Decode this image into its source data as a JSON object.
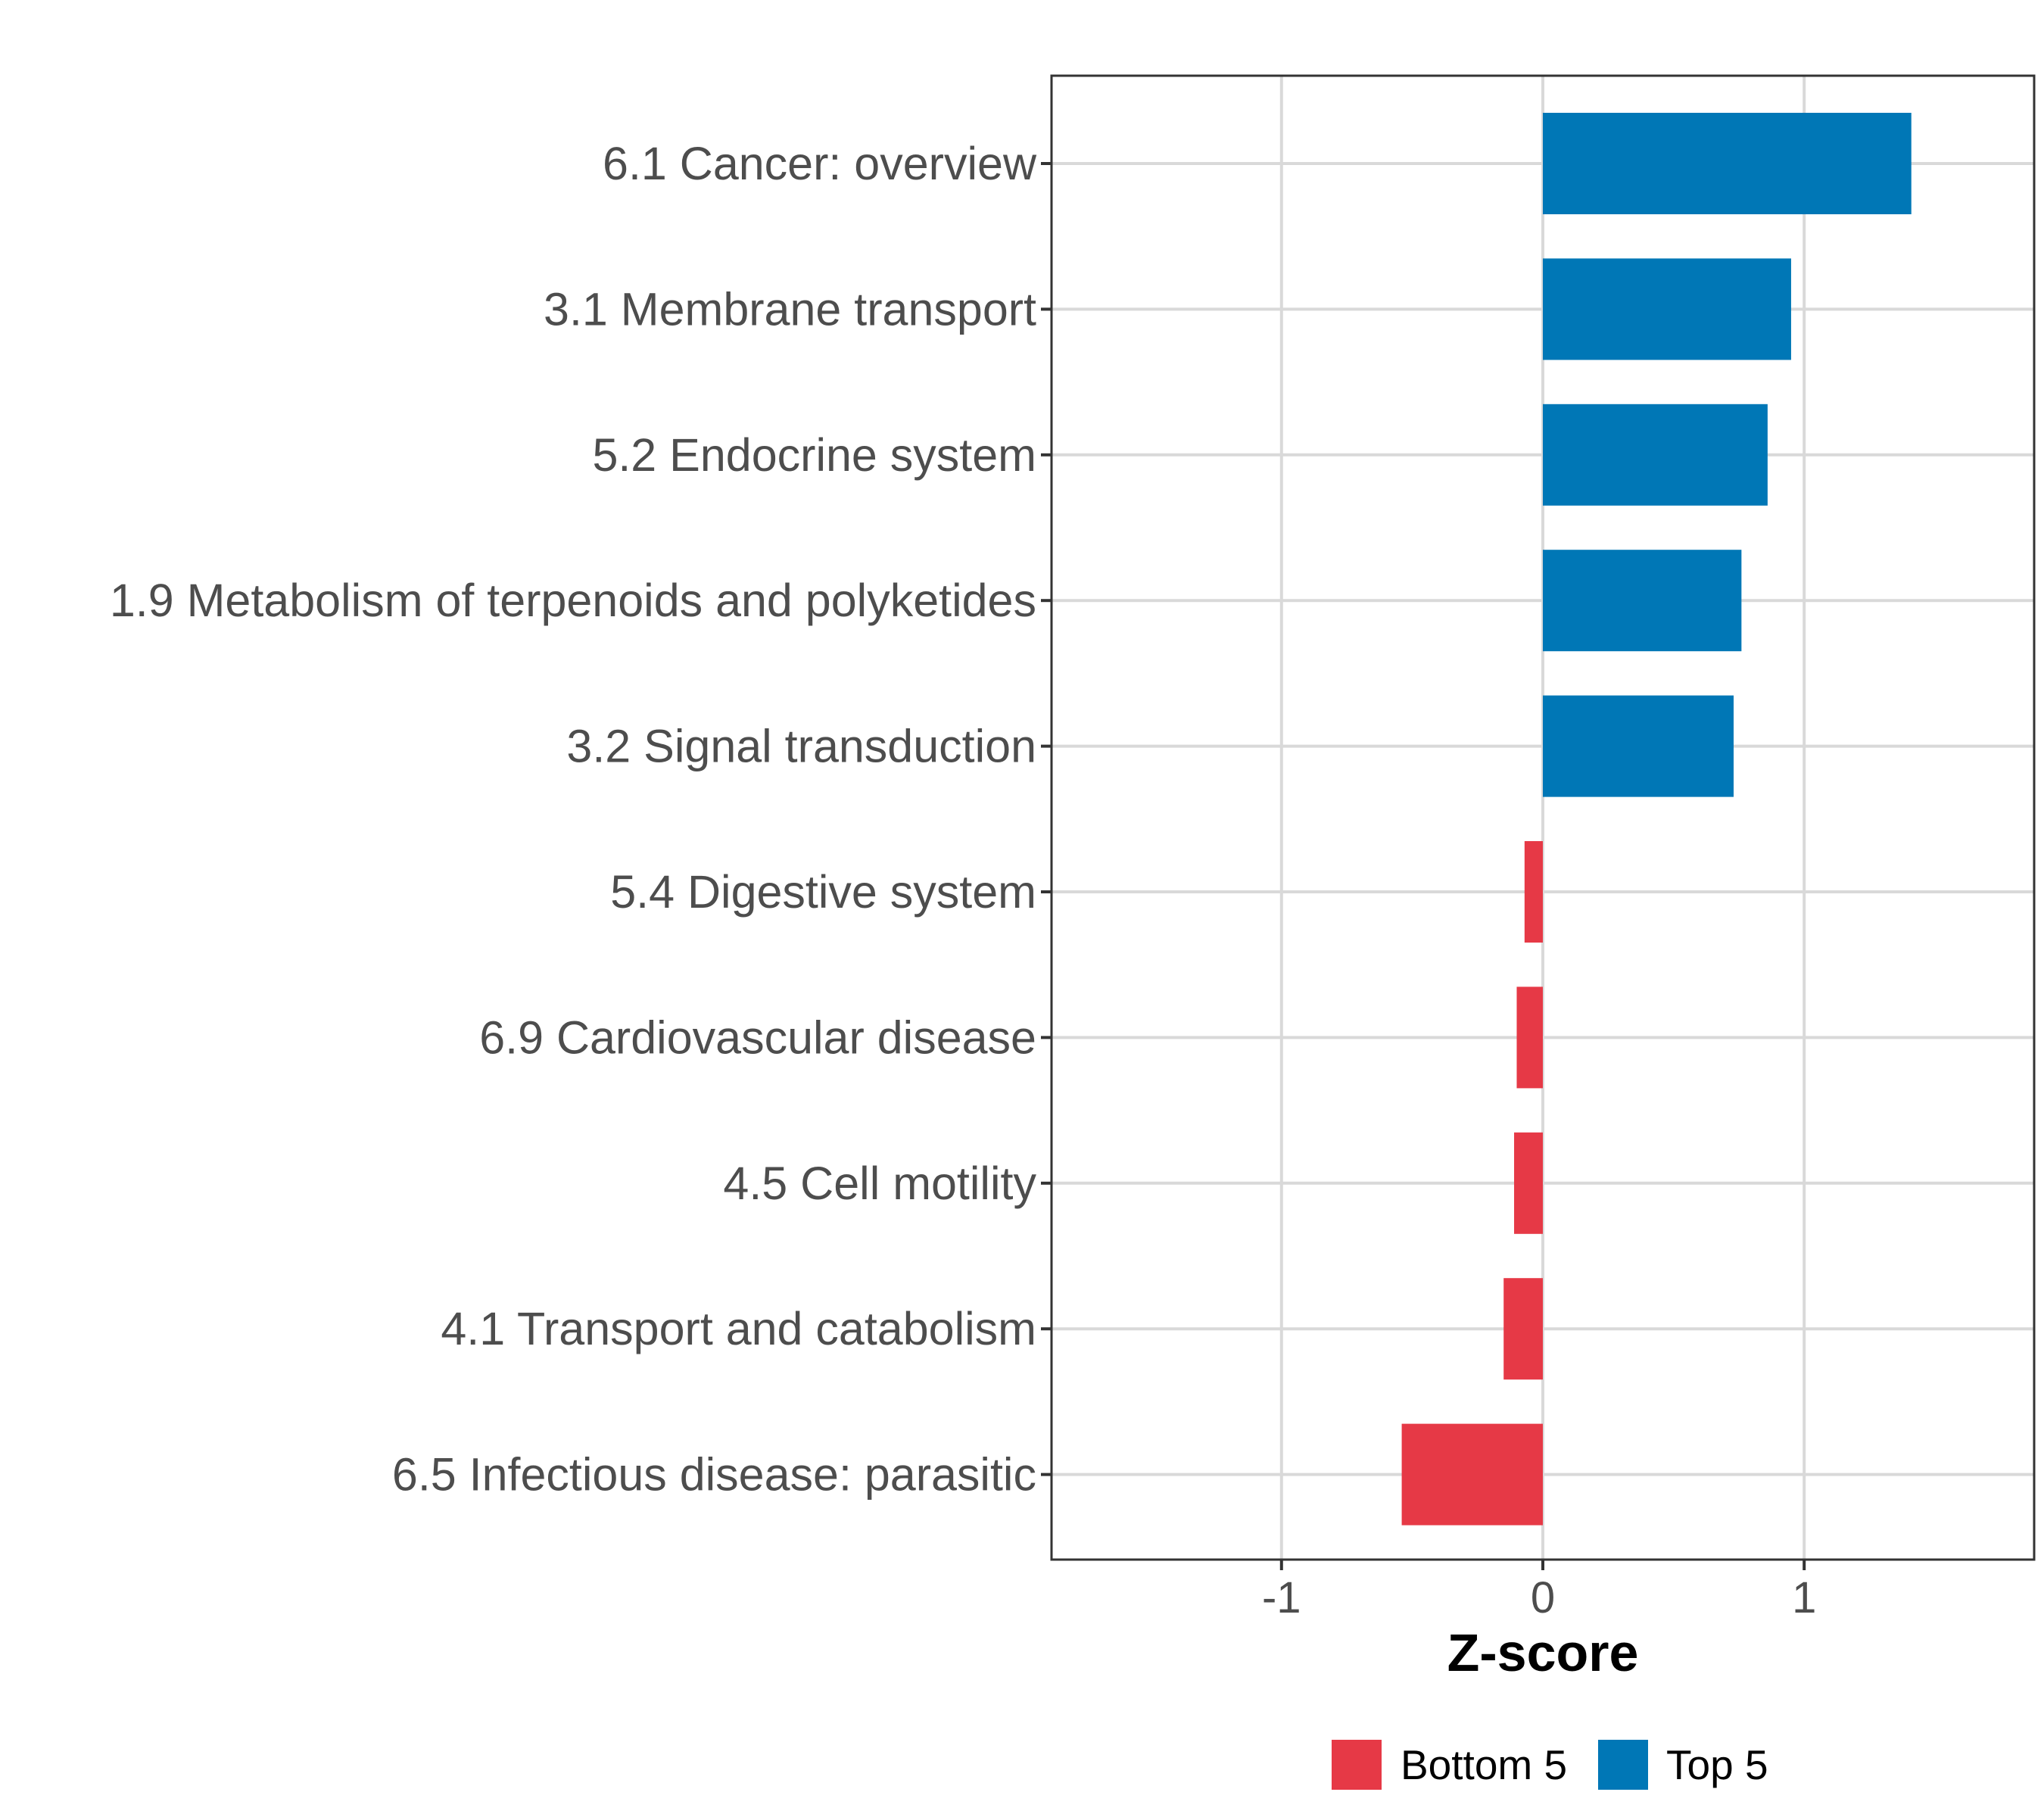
{
  "chart_data": {
    "type": "bar",
    "orientation": "horizontal",
    "categories": [
      "6.1 Cancer: overview",
      "3.1 Membrane transport",
      "5.2 Endocrine system",
      "1.9 Metabolism of terpenoids and polyketides",
      "3.2 Signal transduction",
      "5.4 Digestive system",
      "6.9 Cardiovascular disease",
      "4.5 Cell motility",
      "4.1 Transport and catabolism",
      "6.5 Infectious disease: parasitic"
    ],
    "values": [
      1.41,
      0.95,
      0.86,
      0.76,
      0.73,
      -0.07,
      -0.1,
      -0.11,
      -0.15,
      -0.54
    ],
    "groups": [
      "Top 5",
      "Top 5",
      "Top 5",
      "Top 5",
      "Top 5",
      "Bottom 5",
      "Bottom 5",
      "Bottom 5",
      "Bottom 5",
      "Bottom 5"
    ],
    "xlabel": "Z-score",
    "ylabel": "",
    "xlim": [
      -1.88,
      1.88
    ],
    "xticks": [
      -1,
      0,
      1
    ],
    "xtick_labels": [
      "-1",
      "0",
      "1"
    ],
    "grid": true,
    "legend": {
      "position": "bottom",
      "entries": [
        {
          "label": "Bottom 5",
          "color": "#e63946"
        },
        {
          "label": "Top 5",
          "color": "#0077b6"
        }
      ]
    }
  }
}
